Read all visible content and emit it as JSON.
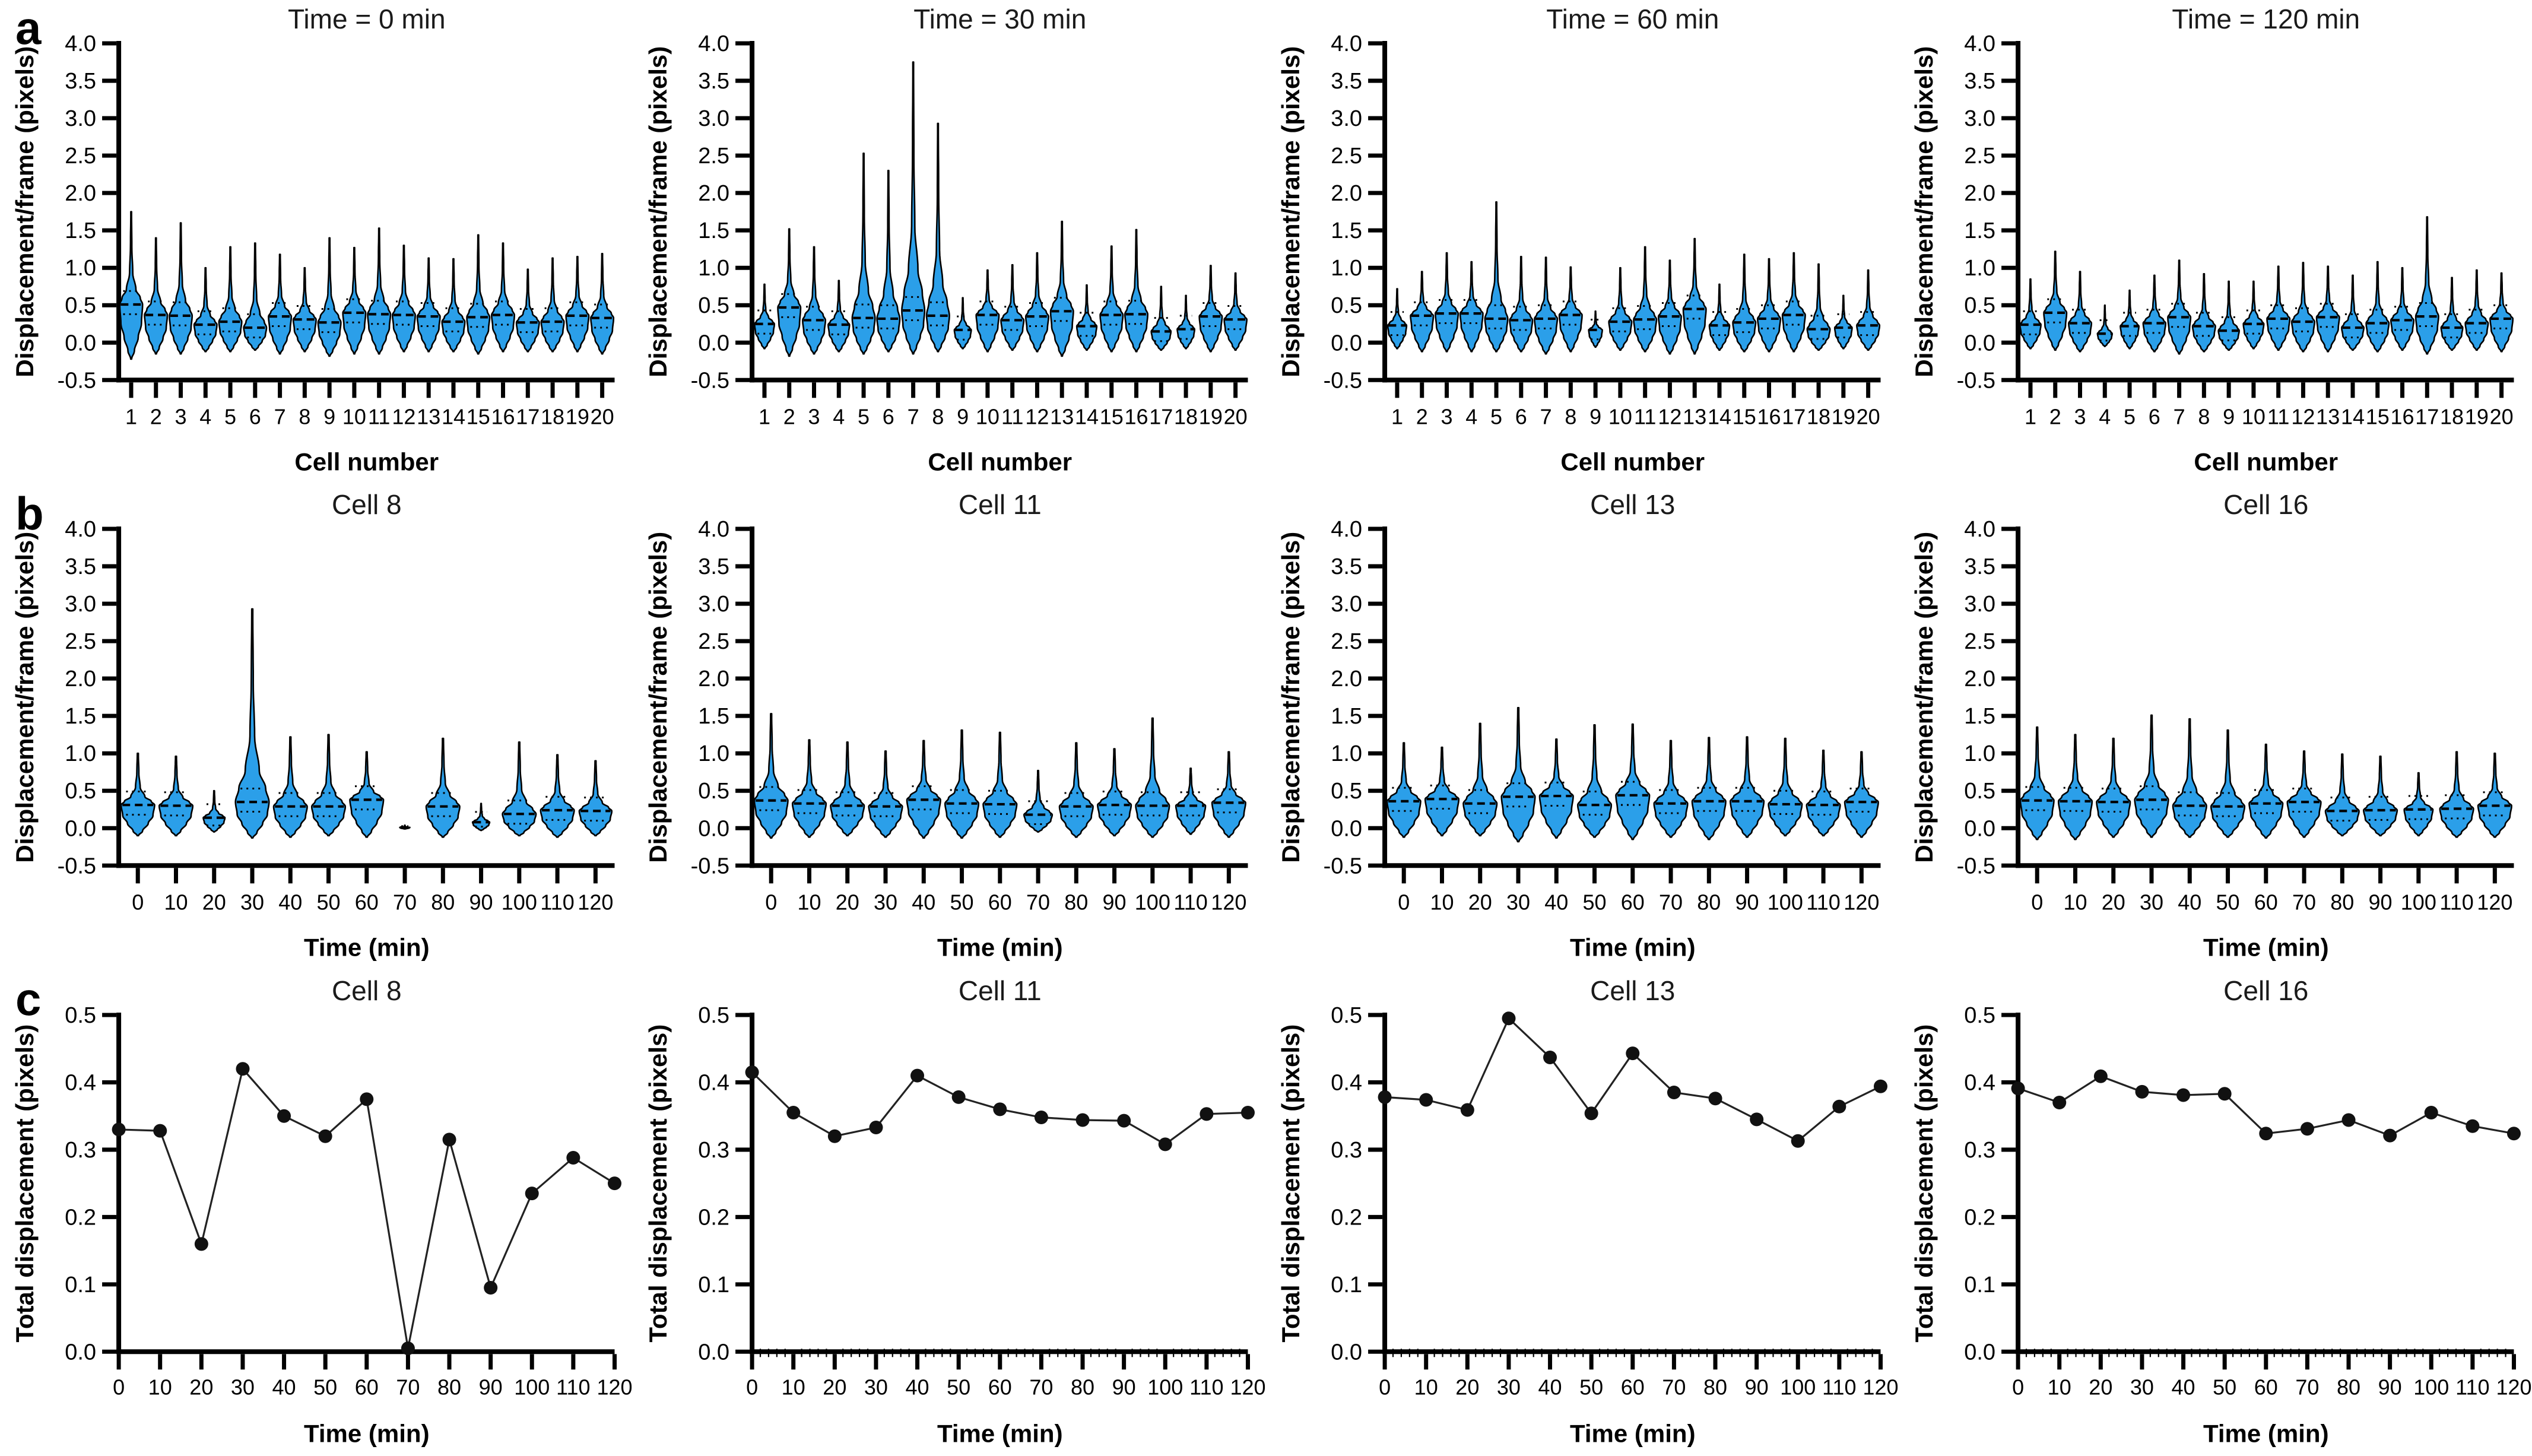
{
  "figure": {
    "background": "#ffffff",
    "violin_fill": "#2B9FE9",
    "axis_color": "#000000",
    "point_color": "#111111",
    "row_labels": [
      "a",
      "b",
      "c"
    ]
  },
  "chart_data": [
    {
      "id": "a1",
      "row": "a",
      "type": "violin",
      "title": "Time = 0 min",
      "xlabel": "Cell number",
      "ylabel": "Displacement/frame (pixels)",
      "ylim": [
        -0.5,
        4.0
      ],
      "ytick_step": 0.5,
      "grid": false,
      "categories": [
        "1",
        "2",
        "3",
        "4",
        "5",
        "6",
        "7",
        "8",
        "9",
        "10",
        "11",
        "12",
        "13",
        "14",
        "15",
        "16",
        "17",
        "18",
        "19",
        "20"
      ],
      "violin_max": [
        1.75,
        1.4,
        1.6,
        1.0,
        1.28,
        1.33,
        1.18,
        1.0,
        1.4,
        1.27,
        1.53,
        1.3,
        1.13,
        1.12,
        1.44,
        1.33,
        0.98,
        1.13,
        1.15,
        1.19
      ],
      "violin_median": [
        0.51,
        0.37,
        0.36,
        0.24,
        0.28,
        0.2,
        0.35,
        0.31,
        0.27,
        0.4,
        0.38,
        0.37,
        0.35,
        0.28,
        0.34,
        0.37,
        0.27,
        0.28,
        0.36,
        0.33
      ],
      "violin_min": [
        -0.22,
        -0.15,
        -0.15,
        -0.12,
        -0.12,
        -0.1,
        -0.15,
        -0.12,
        -0.18,
        -0.15,
        -0.15,
        -0.12,
        -0.12,
        -0.12,
        -0.15,
        -0.12,
        -0.12,
        -0.12,
        -0.12,
        -0.15
      ]
    },
    {
      "id": "a2",
      "row": "a",
      "type": "violin",
      "title": "Time = 30 min",
      "xlabel": "Cell number",
      "ylabel": "Displacement/frame (pixels)",
      "ylim": [
        -0.5,
        4.0
      ],
      "ytick_step": 0.5,
      "grid": false,
      "categories": [
        "1",
        "2",
        "3",
        "4",
        "5",
        "6",
        "7",
        "8",
        "9",
        "10",
        "11",
        "12",
        "13",
        "14",
        "15",
        "16",
        "17",
        "18",
        "19",
        "20"
      ],
      "violin_max": [
        0.78,
        1.52,
        1.28,
        0.83,
        2.53,
        2.3,
        3.75,
        2.93,
        0.6,
        0.97,
        1.04,
        1.2,
        1.62,
        0.77,
        1.29,
        1.51,
        0.75,
        0.63,
        1.03,
        0.93
      ],
      "violin_median": [
        0.25,
        0.47,
        0.3,
        0.24,
        0.33,
        0.32,
        0.43,
        0.36,
        0.17,
        0.37,
        0.3,
        0.35,
        0.42,
        0.22,
        0.37,
        0.38,
        0.15,
        0.18,
        0.35,
        0.31
      ],
      "violin_min": [
        -0.08,
        -0.18,
        -0.15,
        -0.12,
        -0.15,
        -0.12,
        -0.15,
        -0.12,
        -0.08,
        -0.12,
        -0.1,
        -0.12,
        -0.18,
        -0.1,
        -0.12,
        -0.12,
        -0.1,
        -0.08,
        -0.12,
        -0.1
      ]
    },
    {
      "id": "a3",
      "row": "a",
      "type": "violin",
      "title": "Time = 60 min",
      "xlabel": "Cell number",
      "ylabel": "Displacement/frame (pixels)",
      "ylim": [
        -0.5,
        4.0
      ],
      "ytick_step": 0.5,
      "grid": false,
      "categories": [
        "1",
        "2",
        "3",
        "4",
        "5",
        "6",
        "7",
        "8",
        "9",
        "10",
        "11",
        "12",
        "13",
        "14",
        "15",
        "16",
        "17",
        "18",
        "19",
        "20"
      ],
      "violin_max": [
        0.72,
        0.95,
        1.2,
        1.08,
        1.88,
        1.15,
        1.14,
        1.01,
        0.42,
        1.0,
        1.28,
        1.1,
        1.39,
        0.78,
        1.18,
        1.12,
        1.2,
        1.05,
        0.63,
        0.97
      ],
      "violin_median": [
        0.23,
        0.36,
        0.39,
        0.39,
        0.32,
        0.3,
        0.32,
        0.37,
        0.17,
        0.28,
        0.31,
        0.35,
        0.45,
        0.23,
        0.27,
        0.32,
        0.37,
        0.18,
        0.2,
        0.23
      ],
      "violin_min": [
        -0.08,
        -0.12,
        -0.12,
        -0.12,
        -0.12,
        -0.12,
        -0.15,
        -0.12,
        -0.06,
        -0.1,
        -0.12,
        -0.15,
        -0.15,
        -0.1,
        -0.12,
        -0.12,
        -0.12,
        -0.1,
        -0.08,
        -0.1
      ]
    },
    {
      "id": "a4",
      "row": "a",
      "type": "violin",
      "title": "Time = 120 min",
      "xlabel": "Cell number",
      "ylabel": "Displacement/frame (pixels)",
      "ylim": [
        -0.5,
        4.0
      ],
      "ytick_step": 0.5,
      "grid": false,
      "categories": [
        "1",
        "2",
        "3",
        "4",
        "5",
        "6",
        "7",
        "8",
        "9",
        "10",
        "11",
        "12",
        "13",
        "14",
        "15",
        "16",
        "17",
        "18",
        "19",
        "20"
      ],
      "violin_max": [
        0.85,
        1.22,
        0.95,
        0.5,
        0.7,
        0.9,
        1.1,
        0.92,
        0.82,
        0.82,
        1.02,
        1.07,
        1.02,
        0.9,
        1.08,
        1.0,
        1.68,
        0.87,
        0.97,
        0.93
      ],
      "violin_median": [
        0.24,
        0.4,
        0.26,
        0.12,
        0.22,
        0.26,
        0.34,
        0.22,
        0.16,
        0.25,
        0.32,
        0.28,
        0.34,
        0.2,
        0.26,
        0.3,
        0.35,
        0.2,
        0.26,
        0.32
      ],
      "violin_min": [
        -0.08,
        -0.1,
        -0.12,
        -0.05,
        -0.08,
        -0.12,
        -0.15,
        -0.12,
        -0.1,
        -0.08,
        -0.1,
        -0.12,
        -0.12,
        -0.1,
        -0.12,
        -0.1,
        -0.15,
        -0.1,
        -0.1,
        -0.12
      ]
    },
    {
      "id": "b1",
      "row": "b",
      "type": "violin",
      "title": "Cell 8",
      "xlabel": "Time  (min)",
      "ylabel": "Displacement/frame (pixels)",
      "ylim": [
        -0.5,
        4.0
      ],
      "ytick_step": 0.5,
      "grid": false,
      "categories": [
        "0",
        "10",
        "20",
        "30",
        "40",
        "50",
        "60",
        "70",
        "80",
        "90",
        "100",
        "110",
        "120"
      ],
      "violin_max": [
        1.0,
        0.96,
        0.5,
        2.93,
        1.22,
        1.25,
        1.02,
        0.04,
        1.2,
        0.33,
        1.15,
        0.98,
        0.9
      ],
      "violin_median": [
        0.31,
        0.3,
        0.14,
        0.35,
        0.29,
        0.29,
        0.38,
        0.01,
        0.29,
        0.08,
        0.19,
        0.24,
        0.23
      ],
      "violin_min": [
        -0.1,
        -0.1,
        -0.05,
        -0.13,
        -0.12,
        -0.1,
        -0.12,
        -0.01,
        -0.12,
        -0.03,
        -0.1,
        -0.12,
        -0.1
      ]
    },
    {
      "id": "b2",
      "row": "b",
      "type": "violin",
      "title": "Cell 11",
      "xlabel": "Time (min)",
      "ylabel": "Displacement/frame (pixels)",
      "ylim": [
        -0.5,
        4.0
      ],
      "ytick_step": 0.5,
      "grid": false,
      "categories": [
        "0",
        "10",
        "20",
        "30",
        "40",
        "50",
        "60",
        "70",
        "80",
        "90",
        "100",
        "110",
        "120"
      ],
      "violin_max": [
        1.53,
        1.18,
        1.15,
        1.03,
        1.17,
        1.31,
        1.28,
        0.77,
        1.14,
        1.06,
        1.47,
        0.8,
        1.02
      ],
      "violin_median": [
        0.37,
        0.33,
        0.3,
        0.29,
        0.38,
        0.33,
        0.32,
        0.18,
        0.29,
        0.31,
        0.3,
        0.3,
        0.34
      ],
      "violin_min": [
        -0.13,
        -0.12,
        -0.1,
        -0.12,
        -0.13,
        -0.13,
        -0.12,
        -0.05,
        -0.12,
        -0.1,
        -0.12,
        -0.08,
        -0.12
      ]
    },
    {
      "id": "b3",
      "row": "b",
      "type": "violin",
      "title": "Cell 13",
      "xlabel": "Time  (min)",
      "ylabel": "Displacement/frame (pixels)",
      "ylim": [
        -0.5,
        4.0
      ],
      "ytick_step": 0.5,
      "grid": false,
      "categories": [
        "0",
        "10",
        "20",
        "30",
        "40",
        "50",
        "60",
        "70",
        "80",
        "90",
        "100",
        "110",
        "120"
      ],
      "violin_max": [
        1.14,
        1.08,
        1.4,
        1.61,
        1.19,
        1.38,
        1.39,
        1.17,
        1.21,
        1.22,
        1.2,
        1.04,
        1.02
      ],
      "violin_median": [
        0.36,
        0.39,
        0.33,
        0.42,
        0.43,
        0.31,
        0.44,
        0.33,
        0.36,
        0.36,
        0.32,
        0.31,
        0.35
      ],
      "violin_min": [
        -0.12,
        -0.1,
        -0.1,
        -0.18,
        -0.13,
        -0.12,
        -0.15,
        -0.12,
        -0.15,
        -0.12,
        -0.1,
        -0.1,
        -0.12
      ]
    },
    {
      "id": "b4",
      "row": "b",
      "type": "violin",
      "title": "Cell 16",
      "xlabel": "Time  (min)",
      "ylabel": "Displacement/frame (pixels)",
      "ylim": [
        -0.5,
        4.0
      ],
      "ytick_step": 0.5,
      "grid": false,
      "categories": [
        "0",
        "10",
        "20",
        "30",
        "40",
        "50",
        "60",
        "70",
        "80",
        "90",
        "100",
        "110",
        "120"
      ],
      "violin_max": [
        1.35,
        1.25,
        1.2,
        1.51,
        1.46,
        1.31,
        1.12,
        1.03,
        0.99,
        0.96,
        0.74,
        1.02,
        1.0
      ],
      "violin_median": [
        0.37,
        0.36,
        0.35,
        0.38,
        0.3,
        0.29,
        0.33,
        0.35,
        0.23,
        0.24,
        0.25,
        0.26,
        0.3
      ],
      "violin_min": [
        -0.15,
        -0.15,
        -0.12,
        -0.12,
        -0.12,
        -0.12,
        -0.13,
        -0.12,
        -0.1,
        -0.1,
        -0.1,
        -0.12,
        -0.12
      ]
    },
    {
      "id": "c1",
      "row": "c",
      "type": "line",
      "title": "Cell 8",
      "xlabel": "Time (min)",
      "ylabel": "Total displacement (pixels)",
      "ylim": [
        0.0,
        0.5
      ],
      "ytick_step": 0.1,
      "grid": false,
      "minor_xticks": false,
      "x": [
        0,
        10,
        20,
        30,
        40,
        50,
        60,
        70,
        80,
        90,
        100,
        110,
        120
      ],
      "y": [
        0.33,
        0.328,
        0.16,
        0.42,
        0.35,
        0.32,
        0.375,
        0.005,
        0.315,
        0.095,
        0.235,
        0.288,
        0.25
      ]
    },
    {
      "id": "c2",
      "row": "c",
      "type": "line",
      "title": "Cell 11",
      "xlabel": "Time (min)",
      "ylabel": "Total displacement (pixels)",
      "ylim": [
        0.0,
        0.5
      ],
      "ytick_step": 0.1,
      "grid": false,
      "minor_xticks": true,
      "x": [
        0,
        10,
        20,
        30,
        40,
        50,
        60,
        70,
        80,
        90,
        100,
        110,
        120
      ],
      "y": [
        0.415,
        0.355,
        0.32,
        0.333,
        0.41,
        0.378,
        0.36,
        0.348,
        0.344,
        0.343,
        0.308,
        0.353,
        0.355
      ]
    },
    {
      "id": "c3",
      "row": "c",
      "type": "line",
      "title": "Cell 13",
      "xlabel": "Time (min)",
      "ylabel": "Total displacement (pixels)",
      "ylim": [
        0.0,
        0.5
      ],
      "ytick_step": 0.1,
      "grid": false,
      "minor_xticks": true,
      "x": [
        0,
        10,
        20,
        30,
        40,
        50,
        60,
        70,
        80,
        90,
        100,
        110,
        120
      ],
      "y": [
        0.378,
        0.374,
        0.359,
        0.495,
        0.437,
        0.354,
        0.443,
        0.385,
        0.376,
        0.345,
        0.313,
        0.364,
        0.394
      ]
    },
    {
      "id": "c4",
      "row": "c",
      "type": "line",
      "title": "Cell 16",
      "xlabel": "Time (min)",
      "ylabel": "Total displacement (pixels)",
      "ylim": [
        0.0,
        0.5
      ],
      "ytick_step": 0.1,
      "grid": false,
      "minor_xticks": true,
      "x": [
        0,
        10,
        20,
        30,
        40,
        50,
        60,
        70,
        80,
        90,
        100,
        110,
        120
      ],
      "y": [
        0.391,
        0.37,
        0.409,
        0.386,
        0.381,
        0.383,
        0.324,
        0.331,
        0.344,
        0.321,
        0.355,
        0.335,
        0.324
      ]
    }
  ]
}
